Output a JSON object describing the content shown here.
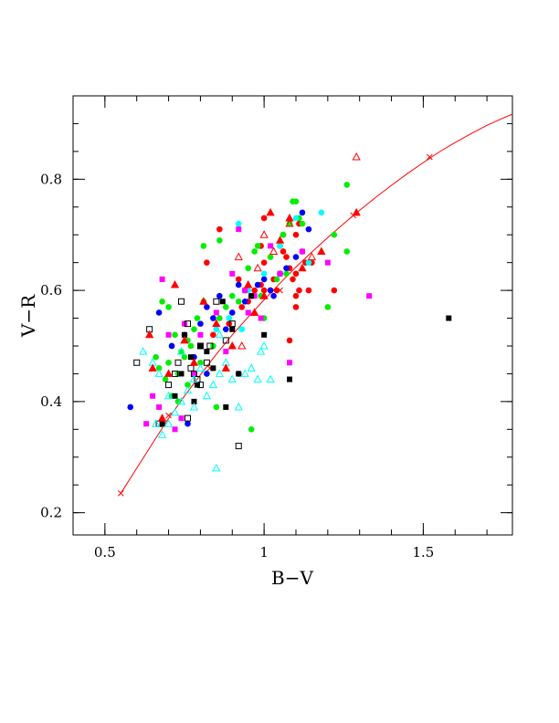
{
  "chart_data": {
    "type": "scatter",
    "xlabel": "B−V",
    "ylabel": "V−R",
    "xlim": [
      0.4,
      1.78
    ],
    "ylim": [
      0.16,
      0.95
    ],
    "x_ticks": [
      {
        "value": 0.5,
        "label": "0.5"
      },
      {
        "value": 1.0,
        "label": "1"
      },
      {
        "value": 1.5,
        "label": "1.5"
      }
    ],
    "y_ticks": [
      {
        "value": 0.2,
        "label": "0.2"
      },
      {
        "value": 0.4,
        "label": "0.4"
      },
      {
        "value": 0.6,
        "label": "0.6"
      },
      {
        "value": 0.8,
        "label": "0.8"
      }
    ],
    "x_minor_step": 0.1,
    "y_minor_step": 0.05,
    "grid": false,
    "legend": "none",
    "colors": {
      "red": "#ff0000",
      "green": "#00ee00",
      "blue": "#0000ff",
      "cyan": "#00ffff",
      "magenta": "#ff00ff",
      "black": "#000000"
    },
    "curve": {
      "color": "#ff0000",
      "points": [
        [
          0.55,
          0.235
        ],
        [
          0.6,
          0.28
        ],
        [
          0.65,
          0.325
        ],
        [
          0.7,
          0.37
        ],
        [
          0.75,
          0.41
        ],
        [
          0.8,
          0.448
        ],
        [
          0.85,
          0.485
        ],
        [
          0.9,
          0.52
        ],
        [
          0.95,
          0.552
        ],
        [
          1.0,
          0.583
        ],
        [
          1.05,
          0.613
        ],
        [
          1.1,
          0.642
        ],
        [
          1.15,
          0.669
        ],
        [
          1.2,
          0.695
        ],
        [
          1.25,
          0.72
        ],
        [
          1.3,
          0.744
        ],
        [
          1.35,
          0.767
        ],
        [
          1.4,
          0.789
        ],
        [
          1.45,
          0.81
        ],
        [
          1.5,
          0.83
        ],
        [
          1.55,
          0.849
        ],
        [
          1.6,
          0.866
        ],
        [
          1.65,
          0.882
        ],
        [
          1.7,
          0.897
        ],
        [
          1.75,
          0.91
        ],
        [
          1.78,
          0.917
        ]
      ],
      "markers": [
        [
          0.55,
          0.235
        ],
        [
          0.7,
          0.375
        ],
        [
          0.83,
          0.46
        ],
        [
          1.05,
          0.6
        ],
        [
          1.28,
          0.735
        ],
        [
          1.52,
          0.84
        ]
      ]
    },
    "series": [
      {
        "marker": "filled-circle",
        "color": "red",
        "points": [
          [
            0.92,
            0.62
          ],
          [
            0.94,
            0.6
          ],
          [
            0.95,
            0.58
          ],
          [
            0.97,
            0.6
          ],
          [
            0.99,
            0.61
          ],
          [
            1.0,
            0.65
          ],
          [
            1.02,
            0.6
          ],
          [
            1.03,
            0.62
          ],
          [
            1.04,
            0.6
          ],
          [
            1.05,
            0.63
          ],
          [
            1.06,
            0.67
          ],
          [
            1.07,
            0.66
          ],
          [
            1.08,
            0.64
          ],
          [
            1.09,
            0.62
          ],
          [
            1.1,
            0.63
          ],
          [
            1.11,
            0.6
          ],
          [
            1.12,
            0.67
          ],
          [
            1.13,
            0.65
          ],
          [
            1.14,
            0.6
          ],
          [
            1.15,
            0.65
          ],
          [
            1.1,
            0.7
          ],
          [
            1.1,
            0.59
          ],
          [
            1.1,
            0.57
          ],
          [
            1.0,
            0.73
          ],
          [
            0.99,
            0.68
          ],
          [
            0.86,
            0.71
          ],
          [
            0.82,
            0.65
          ],
          [
            1.22,
            0.6
          ],
          [
            0.84,
            0.52
          ],
          [
            0.89,
            0.54
          ],
          [
            1.0,
            0.6
          ],
          [
            1.06,
            0.7
          ],
          [
            1.11,
            0.72
          ],
          [
            1.05,
            0.68
          ],
          [
            1.08,
            0.51
          ],
          [
            0.93,
            0.57
          ]
        ]
      },
      {
        "marker": "filled-circle",
        "color": "green",
        "points": [
          [
            0.66,
            0.48
          ],
          [
            0.67,
            0.46
          ],
          [
            0.69,
            0.44
          ],
          [
            0.7,
            0.47
          ],
          [
            0.71,
            0.5
          ],
          [
            0.72,
            0.52
          ],
          [
            0.73,
            0.45
          ],
          [
            0.74,
            0.49
          ],
          [
            0.75,
            0.48
          ],
          [
            0.76,
            0.51
          ],
          [
            0.77,
            0.5
          ],
          [
            0.78,
            0.53
          ],
          [
            0.79,
            0.55
          ],
          [
            0.8,
            0.47
          ],
          [
            0.81,
            0.58
          ],
          [
            0.82,
            0.45
          ],
          [
            0.84,
            0.5
          ],
          [
            0.86,
            0.55
          ],
          [
            0.88,
            0.57
          ],
          [
            0.9,
            0.59
          ],
          [
            0.92,
            0.58
          ],
          [
            0.95,
            0.64
          ],
          [
            0.97,
            0.67
          ],
          [
            0.98,
            0.68
          ],
          [
            1.0,
            0.55
          ],
          [
            1.02,
            0.66
          ],
          [
            1.04,
            0.62
          ],
          [
            1.06,
            0.7
          ],
          [
            1.08,
            0.72
          ],
          [
            1.1,
            0.76
          ],
          [
            1.11,
            0.73
          ],
          [
            1.12,
            0.72
          ],
          [
            1.2,
            0.57
          ],
          [
            1.22,
            0.7
          ],
          [
            1.26,
            0.79
          ],
          [
            1.26,
            0.67
          ],
          [
            0.81,
            0.68
          ],
          [
            0.86,
            0.69
          ],
          [
            0.96,
            0.35
          ],
          [
            0.85,
            0.39
          ],
          [
            0.7,
            0.57
          ],
          [
            0.68,
            0.58
          ],
          [
            1.09,
            0.76
          ],
          [
            0.99,
            0.59
          ],
          [
            1.07,
            0.63
          ],
          [
            0.76,
            0.43
          ],
          [
            0.73,
            0.4
          ],
          [
            0.71,
            0.41
          ]
        ]
      },
      {
        "marker": "filled-circle",
        "color": "blue",
        "points": [
          [
            0.58,
            0.39
          ],
          [
            0.67,
            0.56
          ],
          [
            0.71,
            0.5
          ],
          [
            0.75,
            0.52
          ],
          [
            0.78,
            0.48
          ],
          [
            0.8,
            0.54
          ],
          [
            0.82,
            0.57
          ],
          [
            0.84,
            0.55
          ],
          [
            0.86,
            0.59
          ],
          [
            0.88,
            0.53
          ],
          [
            0.9,
            0.56
          ],
          [
            0.92,
            0.61
          ],
          [
            0.94,
            0.58
          ],
          [
            0.96,
            0.59
          ],
          [
            0.98,
            0.61
          ],
          [
            1.0,
            0.62
          ],
          [
            1.02,
            0.6
          ],
          [
            1.03,
            0.59
          ],
          [
            1.05,
            0.63
          ],
          [
            1.07,
            0.64
          ],
          [
            1.1,
            0.66
          ],
          [
            1.12,
            0.74
          ],
          [
            1.14,
            0.71
          ],
          [
            0.76,
            0.36
          ],
          [
            0.92,
            0.45
          ],
          [
            0.82,
            0.45
          ]
        ]
      },
      {
        "marker": "filled-circle",
        "color": "cyan",
        "points": [
          [
            0.85,
            0.53
          ],
          [
            0.89,
            0.55
          ],
          [
            0.92,
            0.72
          ],
          [
            0.95,
            0.6
          ],
          [
            1.0,
            0.63
          ],
          [
            1.05,
            0.68
          ],
          [
            1.1,
            0.73
          ],
          [
            1.14,
            0.65
          ],
          [
            1.18,
            0.74
          ],
          [
            0.93,
            0.53
          ]
        ]
      },
      {
        "marker": "filled-square",
        "color": "magenta",
        "points": [
          [
            0.63,
            0.36
          ],
          [
            0.65,
            0.41
          ],
          [
            0.67,
            0.39
          ],
          [
            0.7,
            0.52
          ],
          [
            0.72,
            0.35
          ],
          [
            0.74,
            0.37
          ],
          [
            0.75,
            0.54
          ],
          [
            0.78,
            0.45
          ],
          [
            0.8,
            0.52
          ],
          [
            0.85,
            0.56
          ],
          [
            0.88,
            0.49
          ],
          [
            0.9,
            0.63
          ],
          [
            0.92,
            0.71
          ],
          [
            0.94,
            0.6
          ],
          [
            0.97,
            0.59
          ],
          [
            0.99,
            0.55
          ],
          [
            1.02,
            0.68
          ],
          [
            1.05,
            0.63
          ],
          [
            1.08,
            0.47
          ],
          [
            1.12,
            0.67
          ],
          [
            1.2,
            0.65
          ],
          [
            1.33,
            0.59
          ],
          [
            0.68,
            0.62
          ],
          [
            0.95,
            0.56
          ]
        ]
      },
      {
        "marker": "filled-square",
        "color": "black",
        "points": [
          [
            0.68,
            0.36
          ],
          [
            0.72,
            0.41
          ],
          [
            0.75,
            0.52
          ],
          [
            0.77,
            0.48
          ],
          [
            0.78,
            0.4
          ],
          [
            0.8,
            0.5
          ],
          [
            0.82,
            0.49
          ],
          [
            0.84,
            0.46
          ],
          [
            0.87,
            0.58
          ],
          [
            0.88,
            0.39
          ],
          [
            0.9,
            0.53
          ],
          [
            0.92,
            0.45
          ],
          [
            0.96,
            0.59
          ],
          [
            1.0,
            0.52
          ],
          [
            1.08,
            0.44
          ],
          [
            1.58,
            0.55
          ],
          [
            0.74,
            0.45
          ],
          [
            0.79,
            0.43
          ]
        ]
      },
      {
        "marker": "open-square",
        "color": "black",
        "points": [
          [
            0.6,
            0.47
          ],
          [
            0.64,
            0.53
          ],
          [
            0.67,
            0.36
          ],
          [
            0.7,
            0.43
          ],
          [
            0.72,
            0.45
          ],
          [
            0.74,
            0.58
          ],
          [
            0.76,
            0.54
          ],
          [
            0.77,
            0.46
          ],
          [
            0.78,
            0.45
          ],
          [
            0.79,
            0.44
          ],
          [
            0.8,
            0.43
          ],
          [
            0.82,
            0.47
          ],
          [
            0.83,
            0.5
          ],
          [
            0.85,
            0.58
          ],
          [
            0.88,
            0.51
          ],
          [
            0.9,
            0.54
          ],
          [
            0.92,
            0.32
          ],
          [
            0.76,
            0.37
          ],
          [
            0.8,
            0.5
          ],
          [
            0.73,
            0.47
          ]
        ]
      },
      {
        "marker": "open-triangle",
        "color": "cyan",
        "points": [
          [
            0.62,
            0.49
          ],
          [
            0.65,
            0.47
          ],
          [
            0.67,
            0.45
          ],
          [
            0.68,
            0.34
          ],
          [
            0.7,
            0.36
          ],
          [
            0.72,
            0.38
          ],
          [
            0.74,
            0.4
          ],
          [
            0.76,
            0.42
          ],
          [
            0.78,
            0.44
          ],
          [
            0.8,
            0.46
          ],
          [
            0.82,
            0.41
          ],
          [
            0.84,
            0.43
          ],
          [
            0.86,
            0.45
          ],
          [
            0.88,
            0.47
          ],
          [
            0.9,
            0.44
          ],
          [
            0.92,
            0.39
          ],
          [
            0.94,
            0.45
          ],
          [
            0.96,
            0.46
          ],
          [
            0.98,
            0.44
          ],
          [
            1.0,
            0.5
          ],
          [
            1.02,
            0.44
          ],
          [
            0.85,
            0.28
          ],
          [
            0.66,
            0.36
          ],
          [
            0.78,
            0.39
          ],
          [
            0.74,
            0.49
          ],
          [
            0.86,
            0.52
          ],
          [
            0.7,
            0.41
          ],
          [
            0.99,
            0.49
          ]
        ]
      },
      {
        "marker": "filled-triangle",
        "color": "red",
        "points": [
          [
            0.64,
            0.52
          ],
          [
            0.65,
            0.46
          ],
          [
            0.7,
            0.45
          ],
          [
            0.72,
            0.61
          ],
          [
            0.75,
            0.51
          ],
          [
            0.78,
            0.47
          ],
          [
            0.81,
            0.58
          ],
          [
            0.85,
            0.54
          ],
          [
            0.88,
            0.46
          ],
          [
            0.9,
            0.5
          ],
          [
            0.95,
            0.61
          ],
          [
            0.97,
            0.56
          ],
          [
            1.0,
            0.59
          ],
          [
            1.02,
            0.74
          ],
          [
            1.05,
            0.69
          ],
          [
            1.08,
            0.73
          ],
          [
            1.12,
            0.64
          ],
          [
            1.18,
            0.67
          ],
          [
            1.29,
            0.74
          ],
          [
            0.68,
            0.37
          ]
        ]
      },
      {
        "marker": "open-triangle",
        "color": "red",
        "points": [
          [
            0.92,
            0.66
          ],
          [
            0.98,
            0.64
          ],
          [
            1.03,
            0.67
          ],
          [
            1.29,
            0.84
          ],
          [
            1.15,
            0.66
          ],
          [
            0.93,
            0.5
          ],
          [
            1.0,
            0.7
          ],
          [
            1.08,
            0.72
          ]
        ]
      }
    ]
  }
}
